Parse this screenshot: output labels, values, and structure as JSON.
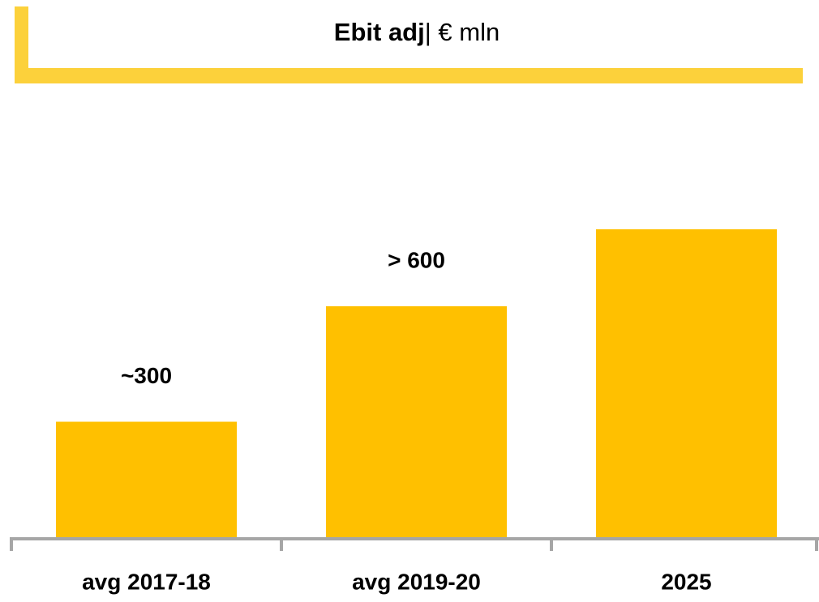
{
  "chart_data": {
    "type": "bar",
    "title": "Ebit adj",
    "title_unit": "| € mln",
    "categories": [
      "avg 2017-18",
      "avg 2019-20",
      "2025"
    ],
    "values": [
      300,
      600,
      800
    ],
    "value_labels": [
      "~300",
      "> 600",
      null
    ],
    "color": "#ffc000"
  }
}
